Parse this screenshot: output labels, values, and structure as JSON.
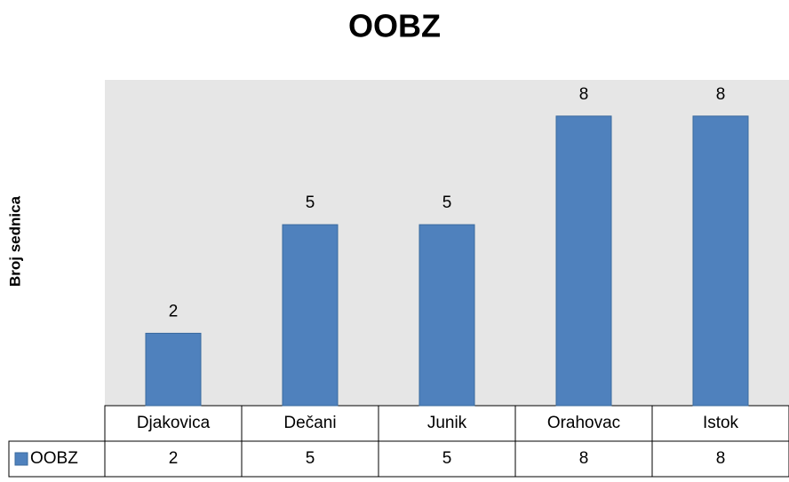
{
  "chart_data": {
    "type": "bar",
    "title": "OOBZ",
    "y_label": "Broj sednica",
    "categories": [
      "Djakovica",
      "Dečani",
      "Junik",
      "Orahovac",
      "Istok"
    ],
    "series": [
      {
        "name": "OOBZ",
        "color": "#4f81bd",
        "values": [
          2,
          5,
          5,
          8,
          8
        ]
      }
    ],
    "ylim": [
      0,
      9
    ],
    "data_table": true
  }
}
